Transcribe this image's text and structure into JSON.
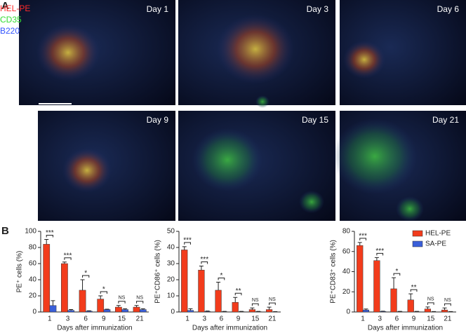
{
  "panel_a": {
    "label": "A",
    "channels": [
      {
        "name": "HEL-PE",
        "color": "#ff2a2a"
      },
      {
        "name": "CD35",
        "color": "#33dd33"
      },
      {
        "name": "B220",
        "color": "#3355ff"
      }
    ],
    "images": [
      {
        "label": "Day 1"
      },
      {
        "label": "Day 3"
      },
      {
        "label": "Day 6"
      },
      {
        "label": "Day 9"
      },
      {
        "label": "Day 15"
      },
      {
        "label": "Day 21"
      }
    ]
  },
  "panel_b": {
    "label": "B"
  },
  "chart_data": [
    {
      "type": "bar",
      "y_label": "PE⁺ cells (%)",
      "x_label": "Days after immunization",
      "categories": [
        "1",
        "3",
        "6",
        "9",
        "15",
        "21"
      ],
      "ylim": [
        0,
        100
      ],
      "yticks": [
        0,
        20,
        40,
        60,
        80,
        100
      ],
      "series": [
        {
          "name": "HEL-PE",
          "color": "#f23c1c",
          "values": [
            84,
            60,
            27,
            16,
            6,
            6
          ],
          "errors": [
            6,
            2,
            13,
            4,
            2,
            2
          ]
        },
        {
          "name": "SA-PE",
          "color": "#3a5fd9",
          "values": [
            8,
            2,
            1,
            3,
            3,
            3
          ],
          "errors": [
            6,
            1,
            0.5,
            0.5,
            1,
            1
          ]
        }
      ],
      "annotations": [
        "***",
        "***",
        "*",
        "*",
        "NS",
        "NS"
      ]
    },
    {
      "type": "bar",
      "y_label": "PE⁺CD86⁺ cells (%)",
      "x_label": "Days after immunization",
      "categories": [
        "1",
        "3",
        "6",
        "9",
        "15",
        "21"
      ],
      "ylim": [
        0,
        50
      ],
      "yticks": [
        0,
        10,
        20,
        30,
        40,
        50
      ],
      "series": [
        {
          "name": "HEL-PE",
          "color": "#f23c1c",
          "values": [
            38.5,
            26,
            13.5,
            6,
            1.5,
            1.5
          ],
          "errors": [
            2,
            2.5,
            5,
            3,
            1,
            1.5
          ]
        },
        {
          "name": "SA-PE",
          "color": "#3a5fd9",
          "values": [
            1,
            0.3,
            0.2,
            0.2,
            0.2,
            0.1
          ],
          "errors": [
            1,
            0.3,
            0.2,
            0.2,
            0.2,
            0.1
          ]
        }
      ],
      "annotations": [
        "***",
        "***",
        "*",
        "**",
        "NS",
        "NS"
      ]
    },
    {
      "type": "bar",
      "y_label": "PE⁺CD83⁺ cells (%)",
      "x_label": "Days after immunization",
      "categories": [
        "1",
        "3",
        "6",
        "9",
        "15",
        "21"
      ],
      "ylim": [
        0,
        80
      ],
      "yticks": [
        0,
        20,
        40,
        60,
        80
      ],
      "series": [
        {
          "name": "HEL-PE",
          "color": "#f23c1c",
          "values": [
            66,
            51,
            23,
            12,
            3,
            2
          ],
          "errors": [
            3,
            3,
            11,
            6,
            2,
            2
          ]
        },
        {
          "name": "SA-PE",
          "color": "#3a5fd9",
          "values": [
            2,
            0.5,
            0.3,
            0.3,
            0.2,
            0.2
          ],
          "errors": [
            1,
            0.3,
            0.3,
            0.3,
            0.2,
            0.2
          ]
        }
      ],
      "annotations": [
        "***",
        "***",
        "*",
        "**",
        "NS",
        "NS"
      ],
      "legend": "upper right"
    }
  ]
}
